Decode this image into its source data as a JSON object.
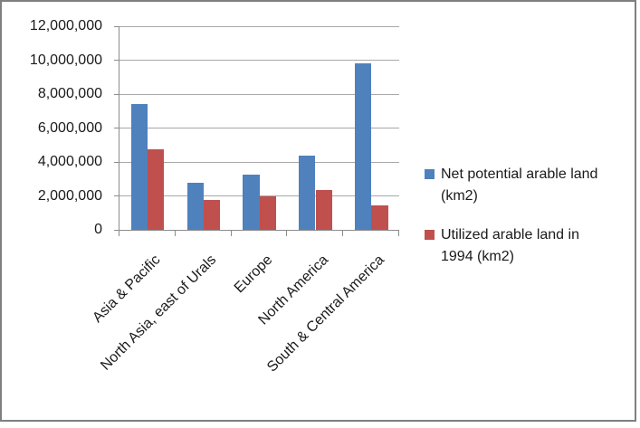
{
  "window": {
    "background": "#ffffff",
    "border_color": "#7f7f7f"
  },
  "chart_data": {
    "type": "bar",
    "title": "",
    "xlabel": "",
    "ylabel": "",
    "categories": [
      "Asia & Pacific",
      "North Asia, east of Urals",
      "Europe",
      "North America",
      "South & Central America"
    ],
    "series": [
      {
        "name": "Net potential arable land (km2)",
        "legend_lines": "Net potential arable land\n(km2)",
        "color": "#4F81BD",
        "values": [
          7400000,
          2750000,
          3250000,
          4350000,
          9800000
        ]
      },
      {
        "name": "Utilized arable land in 1994 (km2)",
        "legend_lines": "Utilized arable land in\n1994 (km2)",
        "color": "#C0504D",
        "values": [
          4750000,
          1750000,
          2000000,
          2350000,
          1450000
        ]
      }
    ],
    "ylim": [
      0,
      12000000
    ],
    "ytick_labels": [
      "12,000,000",
      "10,000,000",
      "8,000,000",
      "6,000,000",
      "4,000,000",
      "2,000,000",
      "0"
    ],
    "grid": "horizontal",
    "legend_position": "right",
    "gridline_color": "#a8a8a8",
    "axis_color": "#8c8c8c"
  }
}
